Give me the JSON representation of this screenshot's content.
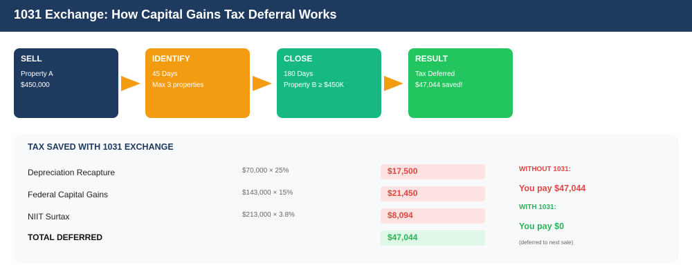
{
  "header": {
    "title": "1031 Exchange: How Capital Gains Tax Deferral Works"
  },
  "steps": [
    {
      "label": "SELL",
      "line1": "Property A",
      "line2": "$450,000",
      "color": "#1e3a5f"
    },
    {
      "label": "IDENTIFY",
      "line1": "45 Days",
      "line2": "Max 3 properties",
      "color": "#f39c12"
    },
    {
      "label": "CLOSE",
      "line1": "180 Days",
      "line2": "Property B ≥ $450K",
      "color": "#16b981"
    },
    {
      "label": "RESULT",
      "line1": "Tax Deferred",
      "line2": "$47,044 saved!",
      "color": "#22c55e"
    }
  ],
  "arrow_color": "#f39c12",
  "tax": {
    "title": "TAX SAVED WITH 1031 EXCHANGE",
    "rows": [
      {
        "label": "Depreciation Recapture",
        "formula": "$70,000 × 25%",
        "amount": "$17,500"
      },
      {
        "label": "Federal Capital Gains",
        "formula": "$143,000 × 15%",
        "amount": "$21,450"
      },
      {
        "label": "NIIT Surtax",
        "formula": "$213,000 × 3.8%",
        "amount": "$8,094"
      }
    ],
    "total": {
      "label": "TOTAL DEFERRED",
      "amount": "$47,044"
    }
  },
  "comparison": {
    "without_label": "WITHOUT 1031:",
    "without_value": "You pay $47,044",
    "with_label": "WITH 1031:",
    "with_value": "You pay $0",
    "note": "(deferred to next sale)",
    "red": "#e04545",
    "green": "#2bb35a"
  }
}
